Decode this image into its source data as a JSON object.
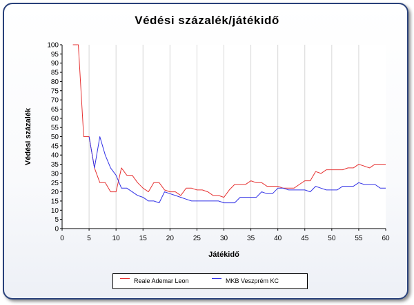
{
  "chart_data": {
    "type": "line",
    "title": "Védési százalék/játékidő",
    "xlabel": "Játékidő",
    "ylabel": "Védési százalék",
    "xlim": [
      0,
      60
    ],
    "ylim": [
      0,
      100
    ],
    "x_ticks": [
      0,
      5,
      10,
      15,
      20,
      25,
      30,
      35,
      40,
      45,
      50,
      55,
      60
    ],
    "y_ticks": [
      0,
      5,
      10,
      15,
      20,
      25,
      30,
      35,
      40,
      45,
      50,
      55,
      60,
      65,
      70,
      75,
      80,
      85,
      90,
      95,
      100
    ],
    "grid": "vertical",
    "legend": "bottom",
    "series": [
      {
        "name": "Reale Ademar Leon",
        "color": "#e63232",
        "points": [
          [
            2,
            100
          ],
          [
            3,
            100
          ],
          [
            4,
            50
          ],
          [
            5,
            50
          ],
          [
            6,
            33
          ],
          [
            7,
            25
          ],
          [
            8,
            25
          ],
          [
            9,
            20
          ],
          [
            10,
            20
          ],
          [
            11,
            33
          ],
          [
            12,
            29
          ],
          [
            13,
            29
          ],
          [
            14,
            25
          ],
          [
            15,
            22
          ],
          [
            16,
            20
          ],
          [
            17,
            25
          ],
          [
            18,
            25
          ],
          [
            19,
            21
          ],
          [
            20,
            20
          ],
          [
            21,
            20
          ],
          [
            22,
            18
          ],
          [
            23,
            22
          ],
          [
            24,
            22
          ],
          [
            25,
            21
          ],
          [
            26,
            21
          ],
          [
            27,
            20
          ],
          [
            28,
            18
          ],
          [
            29,
            18
          ],
          [
            30,
            17
          ],
          [
            31,
            21
          ],
          [
            32,
            24
          ],
          [
            33,
            24
          ],
          [
            34,
            24
          ],
          [
            35,
            26
          ],
          [
            36,
            25
          ],
          [
            37,
            25
          ],
          [
            38,
            23
          ],
          [
            39,
            23
          ],
          [
            40,
            23
          ],
          [
            41,
            22
          ],
          [
            42,
            22
          ],
          [
            43,
            22
          ],
          [
            44,
            24
          ],
          [
            45,
            26
          ],
          [
            46,
            26
          ],
          [
            47,
            31
          ],
          [
            48,
            30
          ],
          [
            49,
            32
          ],
          [
            50,
            32
          ],
          [
            51,
            32
          ],
          [
            52,
            32
          ],
          [
            53,
            33
          ],
          [
            54,
            33
          ],
          [
            55,
            35
          ],
          [
            56,
            34
          ],
          [
            57,
            33
          ],
          [
            58,
            35
          ],
          [
            59,
            35
          ],
          [
            60,
            35
          ]
        ]
      },
      {
        "name": "MKB Veszprém KC",
        "color": "#3232e6",
        "points": [
          [
            5,
            50
          ],
          [
            6,
            33
          ],
          [
            7,
            50
          ],
          [
            8,
            40
          ],
          [
            9,
            33
          ],
          [
            10,
            29
          ],
          [
            11,
            22
          ],
          [
            12,
            22
          ],
          [
            13,
            20
          ],
          [
            14,
            18
          ],
          [
            15,
            17
          ],
          [
            16,
            15
          ],
          [
            17,
            15
          ],
          [
            18,
            14
          ],
          [
            19,
            20
          ],
          [
            20,
            19
          ],
          [
            21,
            18
          ],
          [
            22,
            17
          ],
          [
            23,
            16
          ],
          [
            24,
            15
          ],
          [
            25,
            15
          ],
          [
            26,
            15
          ],
          [
            27,
            15
          ],
          [
            28,
            15
          ],
          [
            29,
            15
          ],
          [
            30,
            14
          ],
          [
            31,
            14
          ],
          [
            32,
            14
          ],
          [
            33,
            17
          ],
          [
            34,
            17
          ],
          [
            35,
            17
          ],
          [
            36,
            17
          ],
          [
            37,
            20
          ],
          [
            38,
            19
          ],
          [
            39,
            19
          ],
          [
            40,
            22
          ],
          [
            41,
            22
          ],
          [
            42,
            21
          ],
          [
            43,
            21
          ],
          [
            44,
            21
          ],
          [
            45,
            21
          ],
          [
            46,
            20
          ],
          [
            47,
            23
          ],
          [
            48,
            22
          ],
          [
            49,
            21
          ],
          [
            50,
            21
          ],
          [
            51,
            21
          ],
          [
            52,
            23
          ],
          [
            53,
            23
          ],
          [
            54,
            23
          ],
          [
            55,
            25
          ],
          [
            56,
            24
          ],
          [
            57,
            24
          ],
          [
            58,
            24
          ],
          [
            59,
            22
          ],
          [
            60,
            22
          ]
        ]
      }
    ]
  }
}
